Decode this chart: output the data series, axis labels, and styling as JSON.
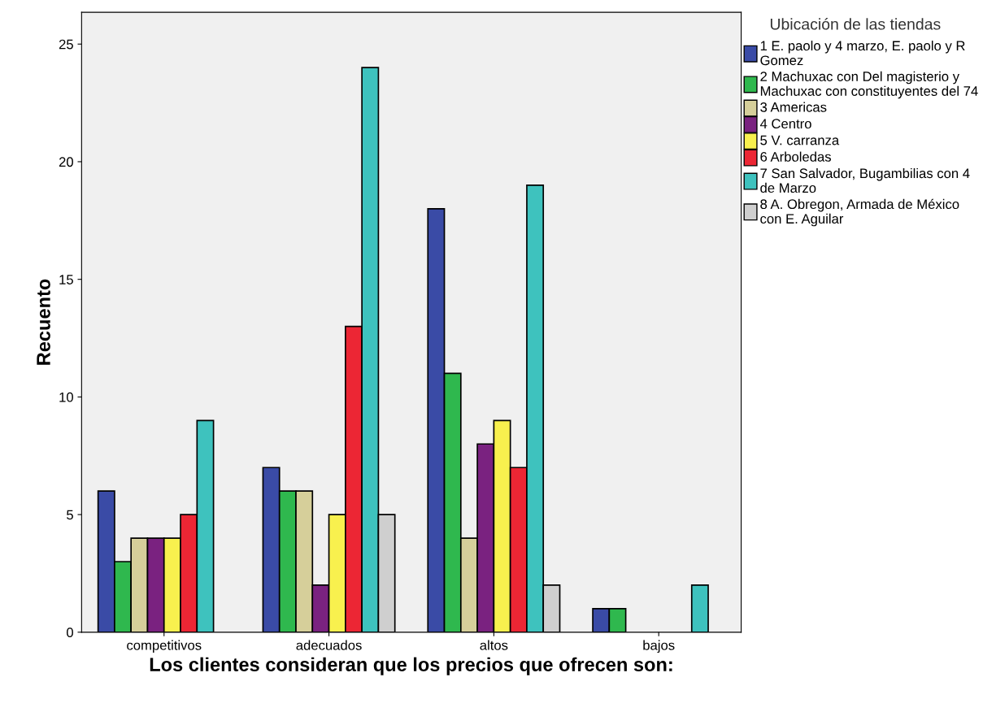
{
  "chart_data": {
    "type": "bar",
    "xlabel": "Los clientes consideran que los precios que ofrecen son:",
    "ylabel": "Recuento",
    "legend_title": "Ubicación de las tiendas",
    "categories": [
      "competitivos",
      "adecuados",
      "altos",
      "bajos"
    ],
    "series": [
      {
        "name": "1 E. paolo y 4 marzo, E. paolo y R Gomez",
        "color": "#3a4ba6",
        "values": [
          6,
          7,
          18,
          1
        ]
      },
      {
        "name": "2 Machuxac con Del magisterio y Machuxac con constituyentes del 74",
        "color": "#2fb84e",
        "values": [
          3,
          6,
          11,
          1
        ]
      },
      {
        "name": "3 Americas",
        "color": "#d6cf9a",
        "values": [
          4,
          6,
          4,
          null
        ]
      },
      {
        "name": "4 Centro",
        "color": "#7a2280",
        "values": [
          4,
          2,
          8,
          null
        ]
      },
      {
        "name": "5 V. carranza",
        "color": "#f8f04e",
        "values": [
          4,
          5,
          9,
          null
        ]
      },
      {
        "name": "6 Arboledas",
        "color": "#ec2634",
        "values": [
          5,
          13,
          7,
          null
        ]
      },
      {
        "name": "7 San Salvador, Bugambilias con 4 de Marzo",
        "color": "#3ec2be",
        "values": [
          9,
          24,
          19,
          2
        ]
      },
      {
        "name": "8 A. Obregon, Armada de México con E. Aguilar",
        "color": "#cfcfcf",
        "values": [
          null,
          5,
          2,
          null
        ]
      }
    ],
    "ylim": [
      0,
      26.35
    ],
    "yticks": [
      0,
      5,
      10,
      15,
      20,
      25
    ],
    "legend": "right",
    "grid": false
  }
}
